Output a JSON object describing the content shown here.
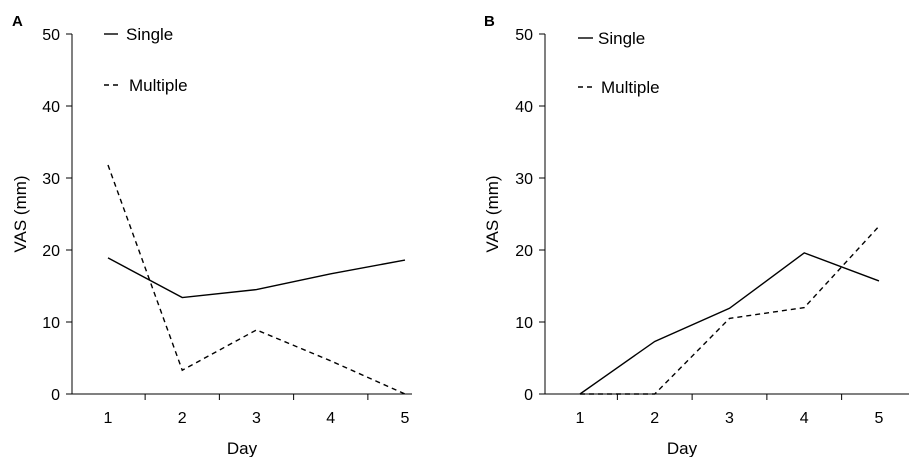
{
  "chart_data": [
    {
      "panel": "A",
      "type": "line",
      "xlabel": "Day",
      "ylabel": "VAS (mm)",
      "x": [
        1,
        2,
        3,
        4,
        5
      ],
      "ylim": [
        0,
        50
      ],
      "yticks": [
        0,
        10,
        20,
        30,
        40,
        50
      ],
      "grid": false,
      "legend_position": "top-left",
      "series": [
        {
          "name": "Single",
          "style": "solid",
          "values": [
            18.9,
            13.4,
            14.5,
            16.7,
            18.6
          ]
        },
        {
          "name": "Multiple",
          "style": "dashed",
          "values": [
            31.8,
            3.3,
            8.9,
            4.6,
            0
          ]
        }
      ]
    },
    {
      "panel": "B",
      "type": "line",
      "xlabel": "Day",
      "ylabel": "VAS (mm)",
      "x": [
        1,
        2,
        3,
        4,
        5
      ],
      "ylim": [
        0,
        50
      ],
      "yticks": [
        0,
        10,
        20,
        30,
        40,
        50
      ],
      "grid": false,
      "legend_position": "top-left",
      "series": [
        {
          "name": "Single",
          "style": "solid",
          "values": [
            0,
            7.3,
            11.9,
            19.6,
            15.7
          ]
        },
        {
          "name": "Multiple",
          "style": "dashed",
          "values": [
            0,
            0,
            10.5,
            12.0,
            23.3
          ]
        }
      ]
    }
  ],
  "colors": {
    "line": "#000000",
    "background": "#ffffff"
  }
}
